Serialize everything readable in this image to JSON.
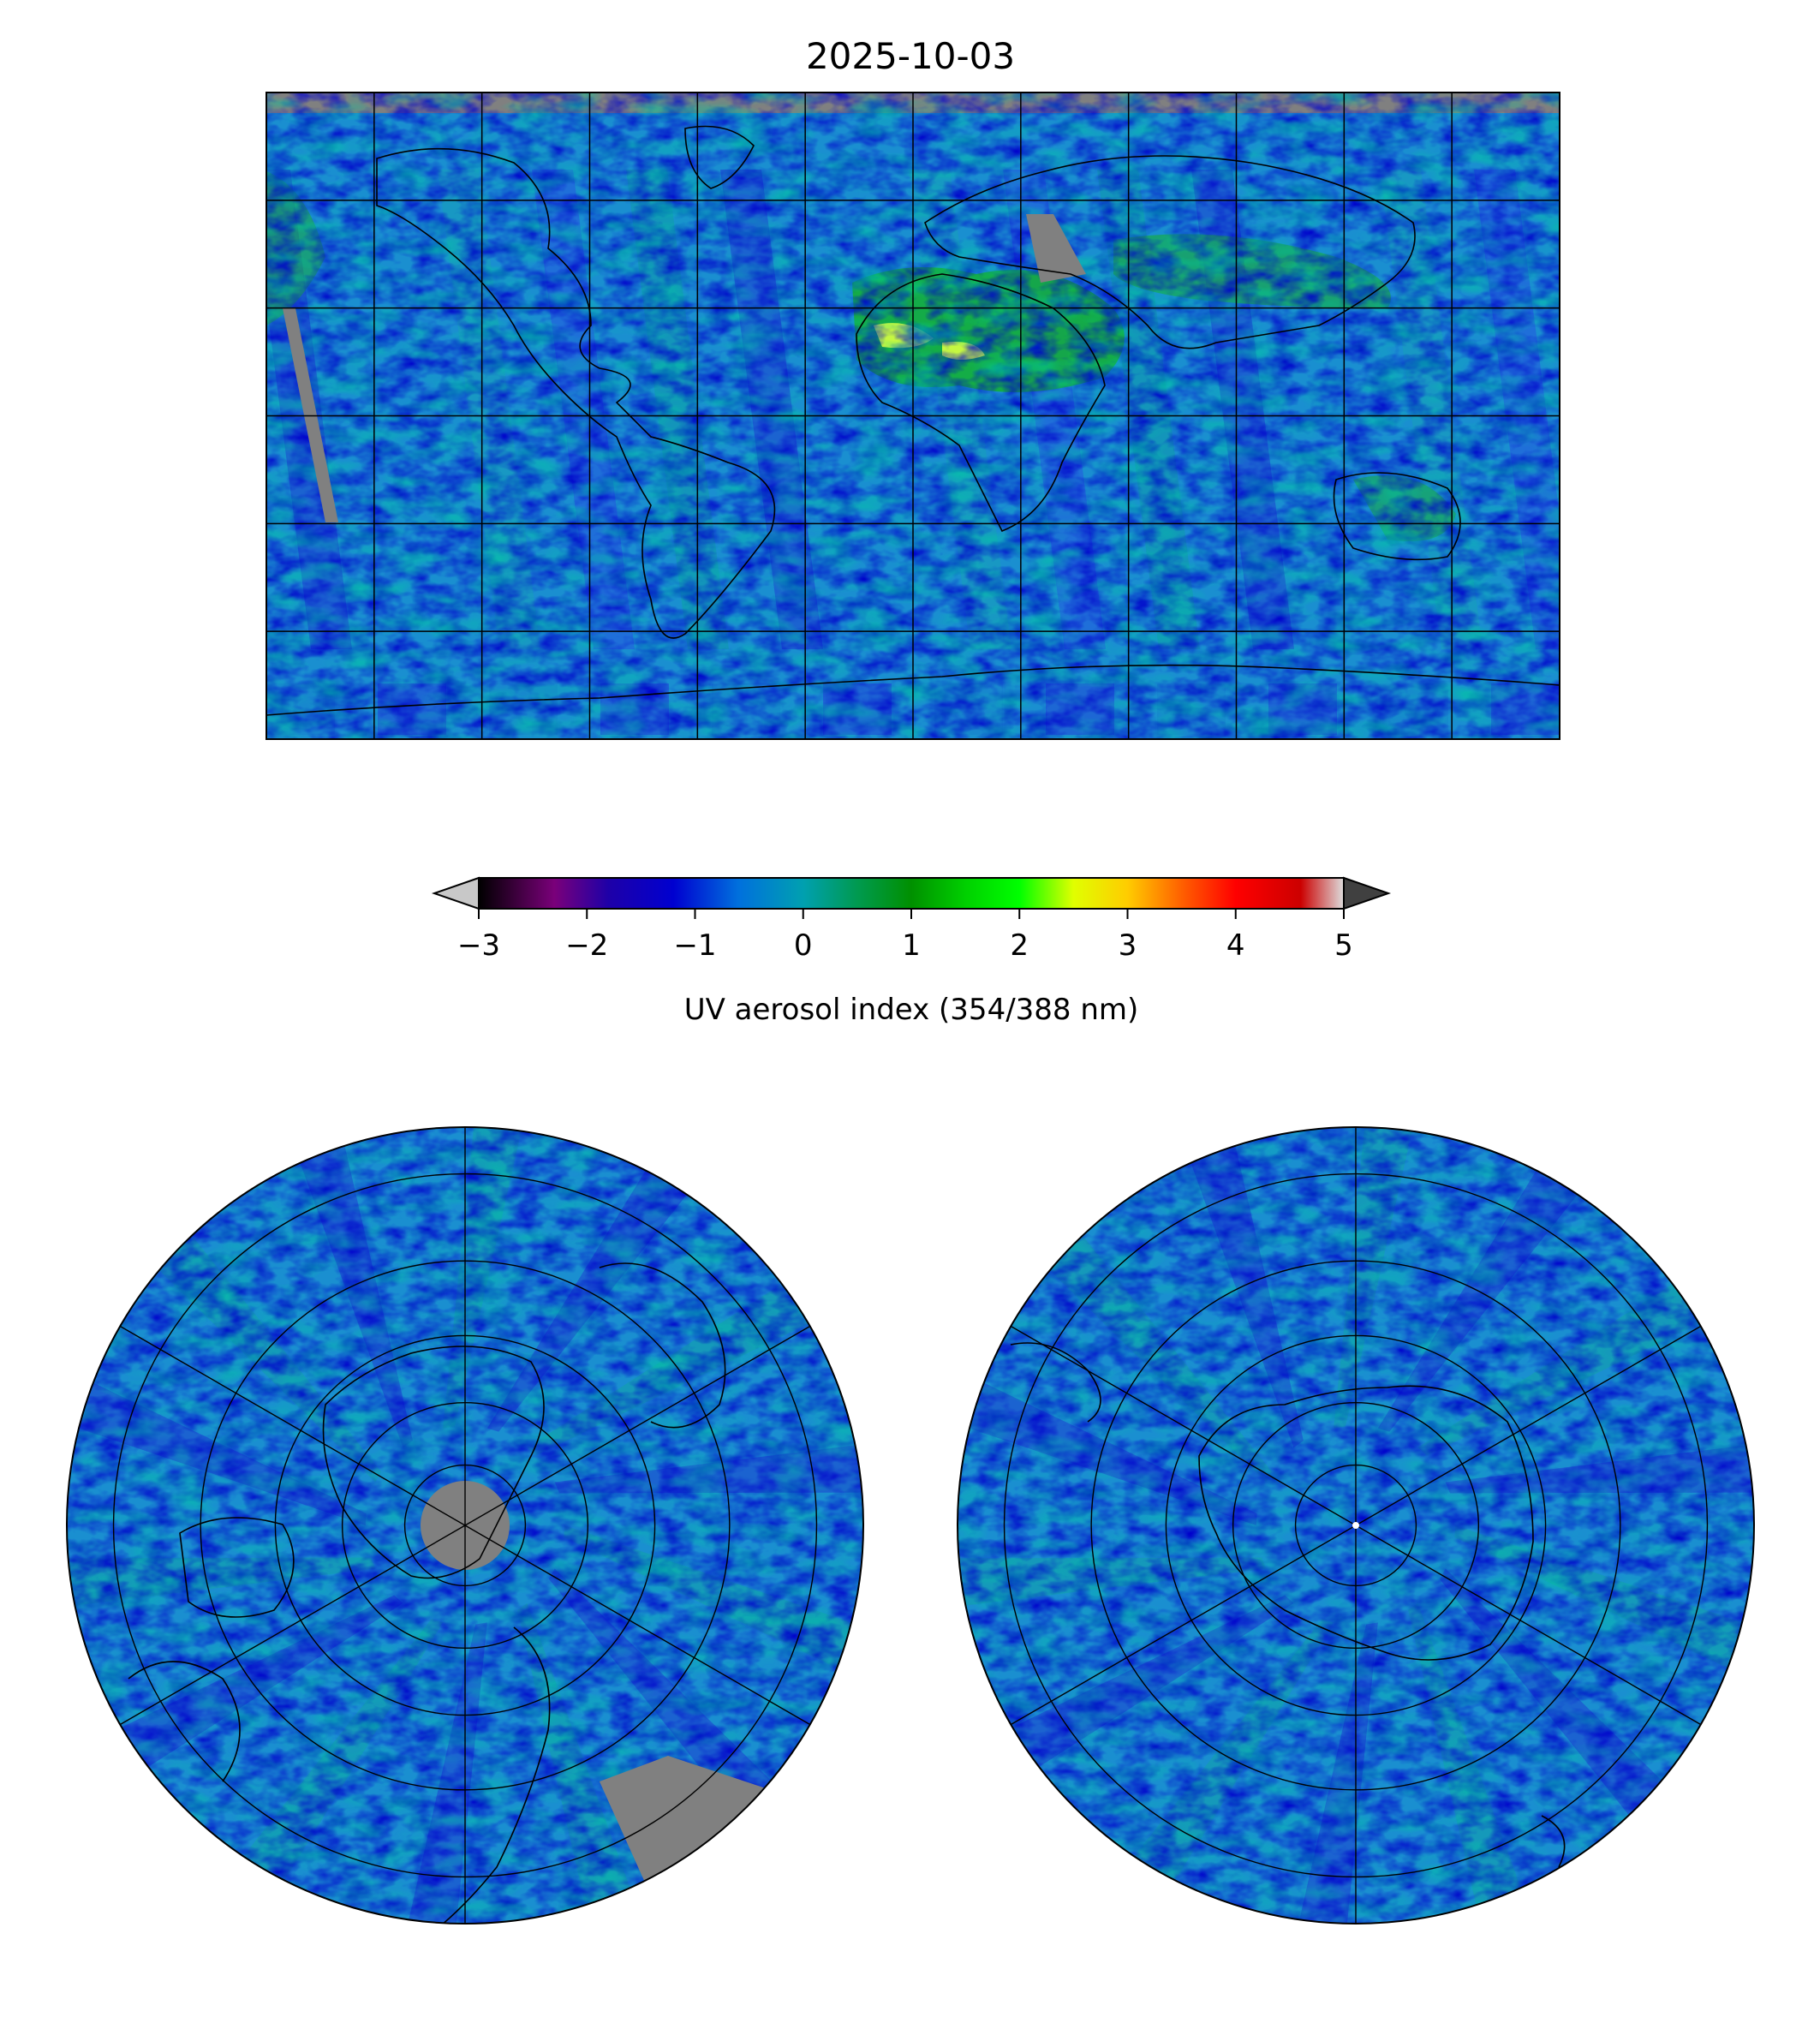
{
  "figure": {
    "title": "2025-10-03"
  },
  "colorbar": {
    "label": "UV aerosol index (354/388 nm)",
    "range": [
      -3,
      5
    ],
    "ticks": [
      -3,
      -2,
      -1,
      0,
      1,
      2,
      3,
      4,
      5
    ],
    "tick_labels": [
      "−3",
      "−2",
      "−1",
      "0",
      "1",
      "2",
      "3",
      "4",
      "5"
    ],
    "extend": "both",
    "under_color": "#c8c8c8",
    "over_color": "#404040",
    "colormap_stops": [
      {
        "v": -3.0,
        "c": "#000000"
      },
      {
        "v": -2.3,
        "c": "#7a007a"
      },
      {
        "v": -1.8,
        "c": "#1e00a8"
      },
      {
        "v": -1.2,
        "c": "#0000d0"
      },
      {
        "v": -0.6,
        "c": "#0070dd"
      },
      {
        "v": 0.0,
        "c": "#00a0b0"
      },
      {
        "v": 0.5,
        "c": "#009a50"
      },
      {
        "v": 1.0,
        "c": "#009000"
      },
      {
        "v": 1.5,
        "c": "#00d000"
      },
      {
        "v": 2.0,
        "c": "#00ff00"
      },
      {
        "v": 2.5,
        "c": "#e0ff00"
      },
      {
        "v": 3.0,
        "c": "#ffcc00"
      },
      {
        "v": 3.5,
        "c": "#ff6000"
      },
      {
        "v": 4.0,
        "c": "#ff0000"
      },
      {
        "v": 4.6,
        "c": "#cc0000"
      },
      {
        "v": 5.0,
        "c": "#dddddd"
      }
    ]
  },
  "panels": [
    {
      "name": "global",
      "projection": "plate-carree",
      "gridlines": {
        "lon_step": 30,
        "lat_step": 30
      }
    },
    {
      "name": "north-polar",
      "projection": "polar-stereographic",
      "hemisphere": "north",
      "gridlines": {
        "lon_step": 60,
        "lat_step": 15
      }
    },
    {
      "name": "south-polar",
      "projection": "polar-stereographic",
      "hemisphere": "south",
      "gridlines": {
        "lon_step": 60,
        "lat_step": 15
      }
    }
  ],
  "colors": {
    "missing_data": "#808080",
    "coastline": "#000000",
    "background_ai": "#1a8fd0"
  }
}
